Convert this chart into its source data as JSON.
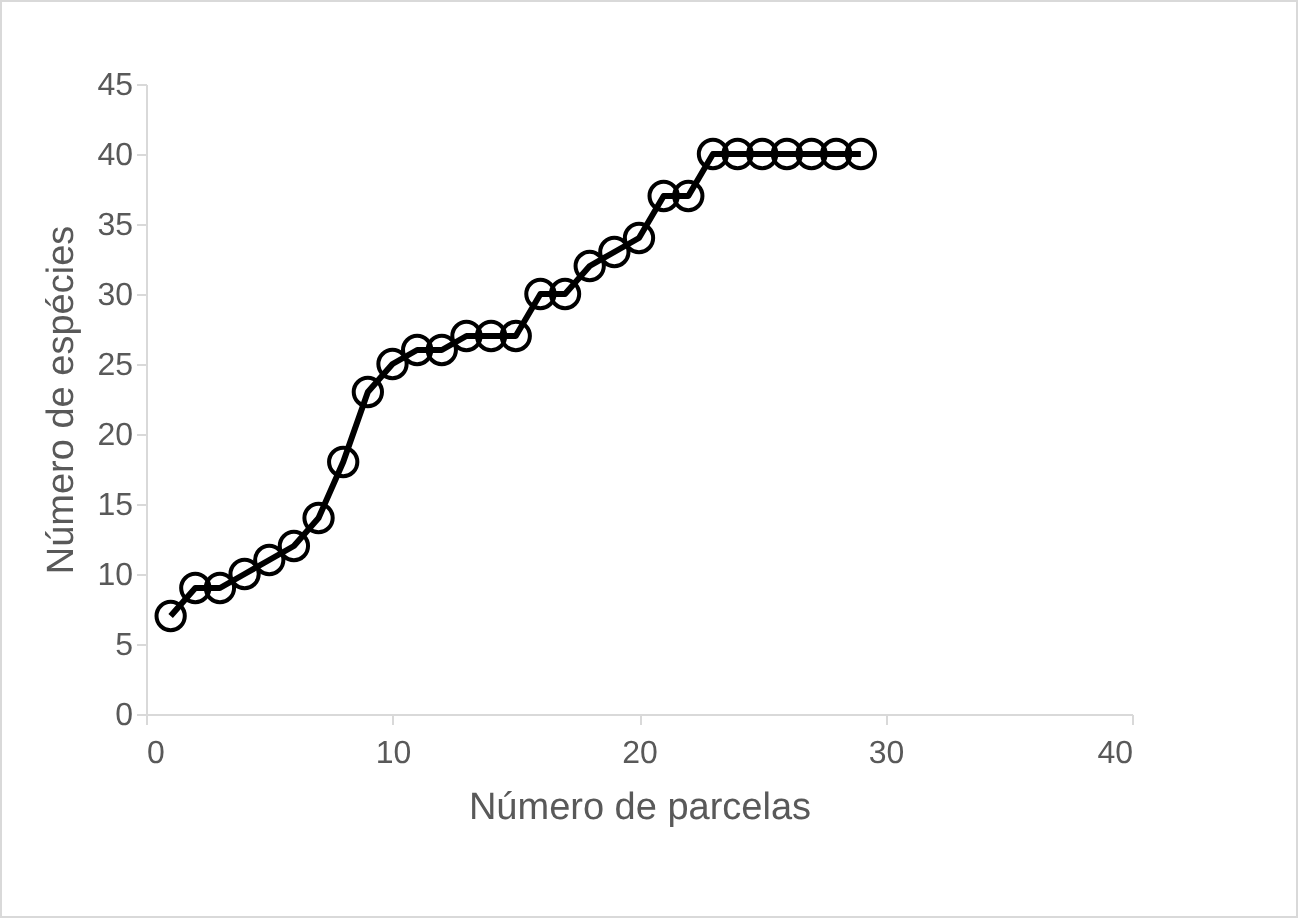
{
  "chart_data": {
    "type": "line",
    "xlabel": "Número de parcelas",
    "ylabel": "Número de espécies",
    "x": [
      1,
      2,
      3,
      4,
      5,
      6,
      7,
      8,
      9,
      10,
      11,
      12,
      13,
      14,
      15,
      16,
      17,
      18,
      19,
      20,
      21,
      22,
      23,
      24,
      25,
      26,
      27,
      28,
      29
    ],
    "series": [
      {
        "color": "#000000",
        "values": [
          7,
          9,
          9,
          10,
          11,
          12,
          14,
          18,
          23,
          25,
          26,
          26,
          27,
          27,
          27,
          30,
          30,
          32,
          33,
          34,
          37,
          37,
          40,
          40,
          40,
          40,
          40,
          40,
          40
        ]
      }
    ],
    "xlim": [
      0,
      40
    ],
    "xticks": [
      0,
      10,
      20,
      30,
      40
    ],
    "ylim": [
      0,
      45
    ],
    "yticks": [
      0,
      5,
      10,
      15,
      20,
      25,
      30,
      35,
      40,
      45
    ],
    "grid": false,
    "marker": "circle",
    "line_style": "solid"
  }
}
